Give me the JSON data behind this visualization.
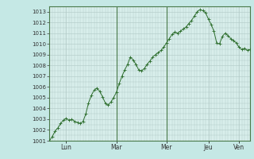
{
  "background_color": "#c5e8e5",
  "plot_bg_color": "#d8eeeb",
  "grid_color": "#b0c8c5",
  "line_color": "#2d6e2d",
  "marker_color": "#2d6e2d",
  "ylim": [
    1001,
    1013.5
  ],
  "yticks": [
    1001,
    1002,
    1003,
    1004,
    1005,
    1006,
    1007,
    1008,
    1009,
    1010,
    1011,
    1012,
    1013
  ],
  "day_labels": [
    "Lun",
    "Mar",
    "Mer",
    "Jeu",
    "Ven"
  ],
  "day_positions": [
    0.083,
    0.333,
    0.583,
    0.792,
    0.944
  ],
  "xlim": [
    0.0,
    1.0
  ],
  "vline_positions": [
    0.333,
    0.583
  ],
  "vline_color": "#4a7a4a",
  "x_values": [
    0.0,
    0.014,
    0.028,
    0.042,
    0.055,
    0.069,
    0.083,
    0.097,
    0.111,
    0.125,
    0.139,
    0.153,
    0.167,
    0.181,
    0.194,
    0.208,
    0.222,
    0.236,
    0.25,
    0.264,
    0.278,
    0.292,
    0.306,
    0.319,
    0.333,
    0.347,
    0.361,
    0.375,
    0.389,
    0.403,
    0.417,
    0.431,
    0.444,
    0.458,
    0.472,
    0.486,
    0.5,
    0.514,
    0.528,
    0.542,
    0.556,
    0.569,
    0.583,
    0.597,
    0.611,
    0.625,
    0.639,
    0.653,
    0.667,
    0.681,
    0.694,
    0.708,
    0.722,
    0.736,
    0.75,
    0.764,
    0.778,
    0.792,
    0.806,
    0.819,
    0.833,
    0.847,
    0.861,
    0.875,
    0.889,
    0.903,
    0.917,
    0.931,
    0.944,
    0.958,
    0.972,
    0.986,
    1.0
  ],
  "y_values": [
    1001.0,
    1001.4,
    1001.9,
    1002.2,
    1002.6,
    1002.9,
    1003.1,
    1002.9,
    1003.0,
    1002.8,
    1002.7,
    1002.6,
    1002.8,
    1003.5,
    1004.5,
    1005.2,
    1005.7,
    1005.9,
    1005.6,
    1005.1,
    1004.5,
    1004.3,
    1004.6,
    1005.0,
    1005.5,
    1006.3,
    1007.0,
    1007.6,
    1008.1,
    1008.8,
    1008.5,
    1008.1,
    1007.6,
    1007.5,
    1007.7,
    1008.1,
    1008.4,
    1008.8,
    1009.0,
    1009.2,
    1009.4,
    1009.7,
    1010.1,
    1010.5,
    1010.9,
    1011.1,
    1011.0,
    1011.2,
    1011.4,
    1011.6,
    1011.9,
    1012.2,
    1012.6,
    1013.0,
    1013.2,
    1013.1,
    1012.9,
    1012.3,
    1011.8,
    1011.2,
    1010.1,
    1010.0,
    1010.7,
    1011.0,
    1010.8,
    1010.5,
    1010.3,
    1010.1,
    1009.7,
    1009.5,
    1009.6,
    1009.4,
    1009.5
  ]
}
